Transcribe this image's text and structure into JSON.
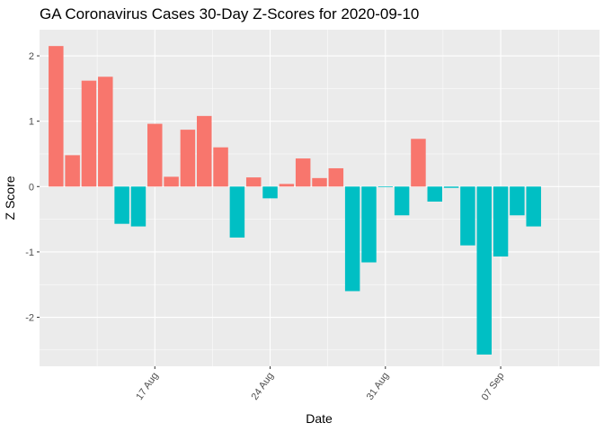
{
  "chart_data": {
    "type": "bar",
    "title": "GA Coronavirus Cases 30-Day Z-Scores for 2020-09-10",
    "xlabel": "Date",
    "ylabel": "Z Score",
    "ylim": [
      -2.75,
      2.4
    ],
    "y_ticks": [
      -2,
      -1,
      0,
      1,
      2
    ],
    "x_ticks": [
      {
        "label": "17 Aug",
        "date": "2020-08-17"
      },
      {
        "label": "24 Aug",
        "date": "2020-08-24"
      },
      {
        "label": "31 Aug",
        "date": "2020-08-31"
      },
      {
        "label": "07 Sep",
        "date": "2020-09-07"
      }
    ],
    "x_range": [
      "2020-08-10",
      "2020-09-13"
    ],
    "colors": {
      "positive": "#F8766D",
      "negative": "#00BFC4",
      "panel": "#EBEBEB",
      "grid": "#FFFFFF"
    },
    "grid": true,
    "legend": "none",
    "categories": [
      "2020-08-11",
      "2020-08-12",
      "2020-08-13",
      "2020-08-14",
      "2020-08-15",
      "2020-08-16",
      "2020-08-17",
      "2020-08-18",
      "2020-08-19",
      "2020-08-20",
      "2020-08-21",
      "2020-08-22",
      "2020-08-23",
      "2020-08-24",
      "2020-08-25",
      "2020-08-26",
      "2020-08-27",
      "2020-08-28",
      "2020-08-29",
      "2020-08-30",
      "2020-08-31",
      "2020-09-01",
      "2020-09-02",
      "2020-09-03",
      "2020-09-04",
      "2020-09-05",
      "2020-09-06",
      "2020-09-07",
      "2020-09-08",
      "2020-09-09",
      "2020-09-10"
    ],
    "values": [
      2.15,
      0.48,
      1.62,
      1.68,
      -0.57,
      -0.61,
      0.96,
      0.15,
      0.87,
      1.08,
      0.6,
      -0.78,
      0.14,
      -0.18,
      0.04,
      0.43,
      0.13,
      0.28,
      -1.6,
      -1.16,
      -0.01,
      -0.44,
      0.73,
      -0.23,
      -0.02,
      -0.9,
      -2.57,
      -1.07,
      -0.44,
      -0.61,
      null
    ]
  }
}
